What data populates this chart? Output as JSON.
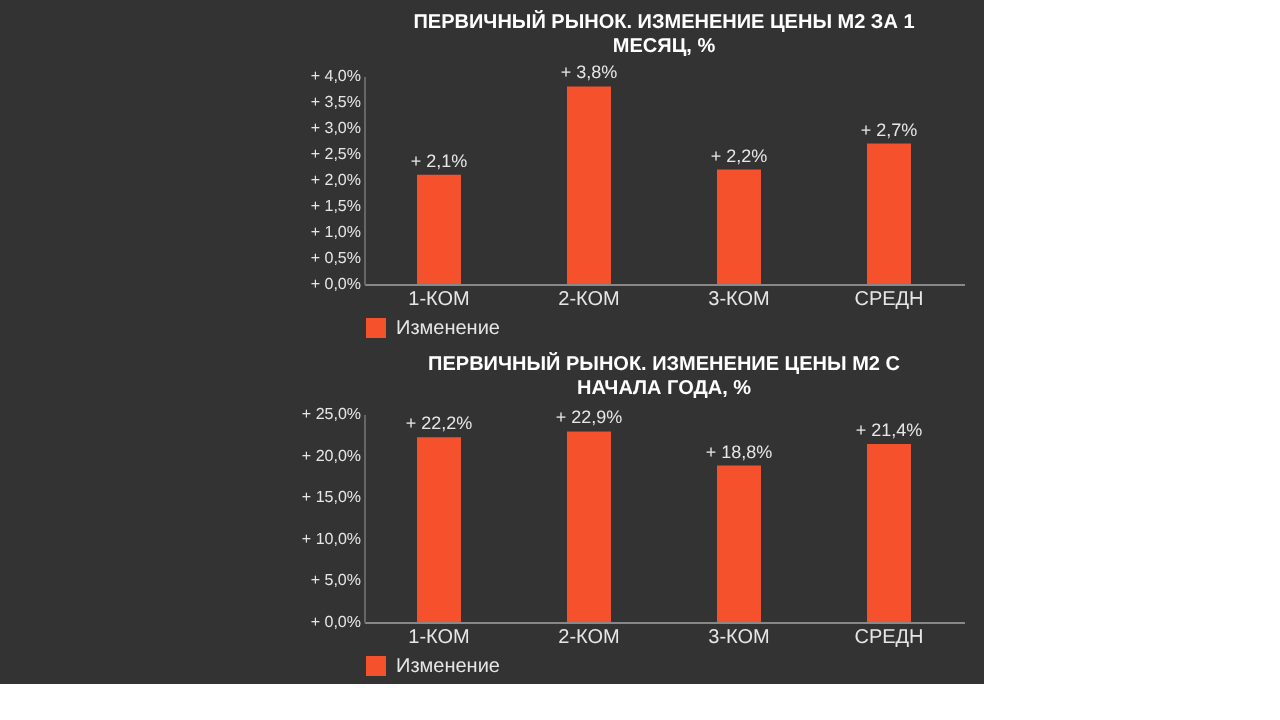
{
  "chart_data": [
    {
      "type": "bar",
      "title": "ПЕРВИЧНЫЙ РЫНОК. ИЗМЕНЕНИЕ ЦЕНЫ М2 ЗА 1 МЕСЯЦ, %",
      "categories": [
        "1-КОМ",
        "2-КОМ",
        "3-КОМ",
        "СРЕДН"
      ],
      "series": [
        {
          "name": "Изменение",
          "color": "#f4512c",
          "values": [
            2.1,
            3.8,
            2.2,
            2.7
          ],
          "value_labels": [
            "+ 2,1%",
            "+ 3,8%",
            "+ 2,2%",
            "+ 2,7%"
          ]
        }
      ],
      "ylim": [
        0,
        4.0
      ],
      "yticks": [
        {
          "value": 0,
          "label": "+ 0,0%"
        },
        {
          "value": 0.5,
          "label": "+ 0,5%"
        },
        {
          "value": 1.0,
          "label": "+ 1,0%"
        },
        {
          "value": 1.5,
          "label": "+ 1,5%"
        },
        {
          "value": 2.0,
          "label": "+ 2,0%"
        },
        {
          "value": 2.5,
          "label": "+ 2,5%"
        },
        {
          "value": 3.0,
          "label": "+ 3,0%"
        },
        {
          "value": 3.5,
          "label": "+ 3,5%"
        },
        {
          "value": 4.0,
          "label": "+ 4,0%"
        }
      ],
      "legend": "bottom"
    },
    {
      "type": "bar",
      "title": "ПЕРВИЧНЫЙ РЫНОК. ИЗМЕНЕНИЕ ЦЕНЫ М2 С НАЧАЛА ГОДА, %",
      "categories": [
        "1-КОМ",
        "2-КОМ",
        "3-КОМ",
        "СРЕДН"
      ],
      "series": [
        {
          "name": "Изменение",
          "color": "#f4512c",
          "values": [
            22.2,
            22.9,
            18.8,
            21.4
          ],
          "value_labels": [
            "+ 22,2%",
            "+ 22,9%",
            "+ 18,8%",
            "+ 21,4%"
          ]
        }
      ],
      "ylim": [
        0,
        25.0
      ],
      "yticks": [
        {
          "value": 0,
          "label": "+ 0,0%"
        },
        {
          "value": 5,
          "label": "+ 5,0%"
        },
        {
          "value": 10,
          "label": "+ 10,0%"
        },
        {
          "value": 15,
          "label": "+ 15,0%"
        },
        {
          "value": 20,
          "label": "+ 20,0%"
        },
        {
          "value": 25,
          "label": "+ 25,0%"
        }
      ],
      "legend": "bottom"
    }
  ]
}
